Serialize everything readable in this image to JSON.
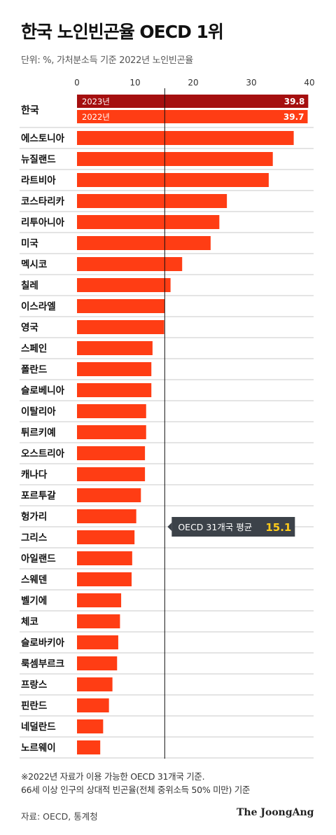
{
  "header": {
    "title": "한국 노인빈곤율 OECD 1위",
    "subtitle": "단위: %, 가처분소득 기준 2022년 노인빈곤율"
  },
  "colors": {
    "bar": "#ff3d14",
    "bar_korea_2023": "#a50f0f",
    "average_box": "#3c4249",
    "average_value": "#ffcc1a"
  },
  "chart_data": {
    "type": "bar",
    "orientation": "horizontal",
    "xlim": [
      0,
      40
    ],
    "x_ticks": [
      "0",
      "10",
      "20",
      "30",
      "40"
    ],
    "korea": {
      "category": "한국",
      "series": [
        {
          "name": "2023년",
          "value": 39.8,
          "label": "39.8"
        },
        {
          "name": "2022년",
          "value": 39.7,
          "label": "39.7"
        }
      ]
    },
    "categories": [
      "에스토니아",
      "뉴질랜드",
      "라트비아",
      "코스타리카",
      "리투아니아",
      "미국",
      "멕시코",
      "칠레",
      "이스라엘",
      "영국",
      "스페인",
      "폴란드",
      "슬로베니아",
      "이탈리아",
      "튀르키예",
      "오스트리아",
      "캐나다",
      "포르투갈",
      "헝가리",
      "그리스",
      "아일랜드",
      "스웨덴",
      "벨기에",
      "체코",
      "슬로바키아",
      "룩셈부르크",
      "프랑스",
      "핀란드",
      "네덜란드",
      "노르웨이"
    ],
    "values": [
      37.3,
      33.7,
      33.0,
      25.8,
      24.5,
      23.0,
      18.1,
      16.1,
      15.1,
      15.0,
      13.0,
      12.8,
      12.8,
      11.9,
      11.9,
      11.7,
      11.7,
      11.0,
      10.2,
      9.9,
      9.5,
      9.4,
      7.6,
      7.4,
      7.1,
      6.9,
      6.1,
      5.5,
      4.5,
      4.0
    ],
    "average": {
      "value": 15.1,
      "label": "OECD 31개국 평균",
      "value_label": "15.1"
    }
  },
  "footnotes": [
    "※2022년 자료가 이용 가능한 OECD 31개국 기준.",
    "66세 이상 인구의 상대적 빈곤율(전체 중위소득 50% 미만) 기준"
  ],
  "source": "자료: OECD, 통계청",
  "brand": "The JoongAng"
}
